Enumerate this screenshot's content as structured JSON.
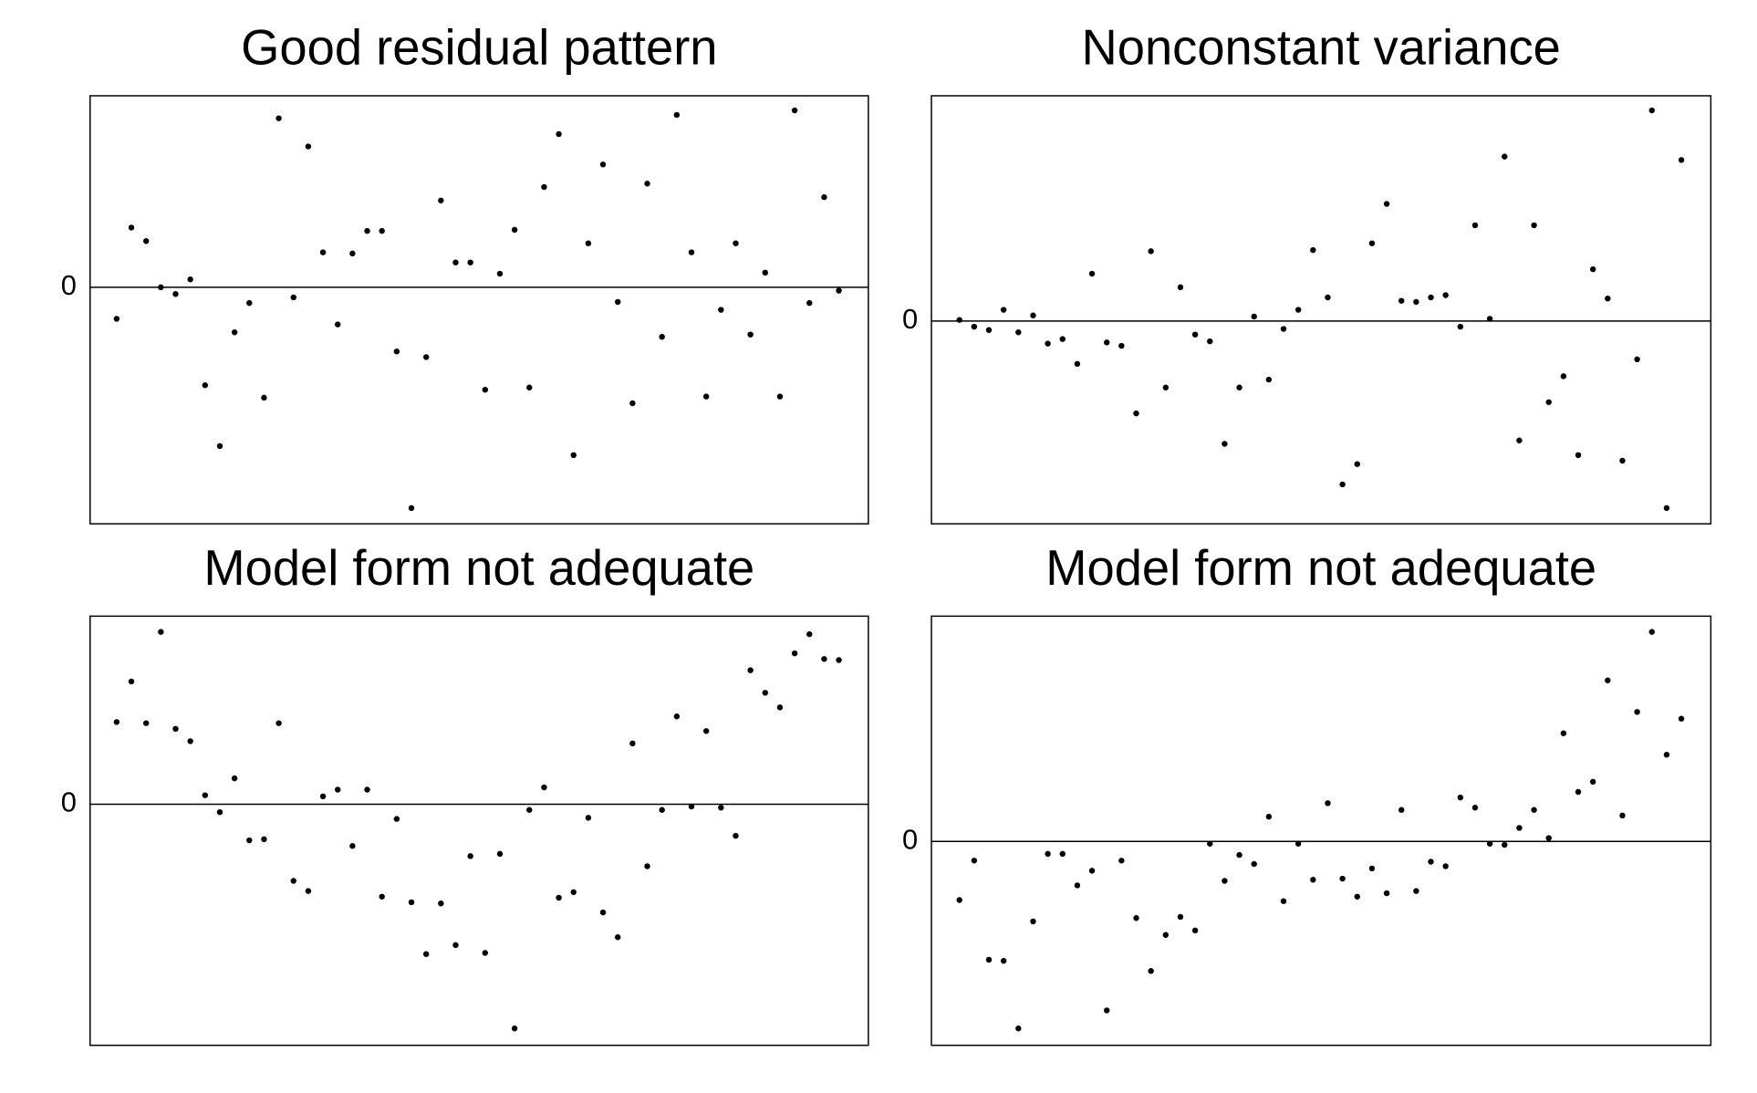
{
  "chart_data": [
    {
      "type": "scatter",
      "title": "Good residual pattern",
      "x": [
        1,
        2,
        3,
        4,
        5,
        6,
        7,
        8,
        9,
        10,
        11,
        12,
        13,
        14,
        15,
        16,
        17,
        18,
        19,
        20,
        21,
        22,
        23,
        24,
        25,
        26,
        27,
        28,
        29,
        30,
        31,
        32,
        33,
        34,
        35,
        36,
        37,
        38,
        39,
        40,
        41,
        42,
        43,
        44,
        45,
        46,
        47,
        48,
        49,
        50
      ],
      "values": [
        -2.8,
        5.3,
        4.1,
        0,
        -0.6,
        0.7,
        -8.7,
        -14.1,
        -4,
        -1.4,
        -9.8,
        15,
        -0.9,
        12.5,
        3.1,
        -3.3,
        3,
        5,
        5,
        -5.7,
        -19.6,
        -6.2,
        7.7,
        2.2,
        2.2,
        -9.1,
        1.2,
        5.1,
        -8.9,
        8.9,
        13.6,
        -14.9,
        3.9,
        10.9,
        -1.3,
        -10.3,
        9.2,
        -4.4,
        15.3,
        3.1,
        -9.7,
        -2,
        3.9,
        -4.2,
        1.3,
        -9.7,
        15.7,
        -1.4,
        8,
        -0.3
      ],
      "xlim": [
        -0.8,
        52
      ],
      "ylim": [
        -21,
        17
      ],
      "yticks": [
        0
      ],
      "grid": true,
      "color": "#000000"
    },
    {
      "type": "scatter",
      "title": "Nonconstant variance",
      "x": [
        1,
        2,
        3,
        4,
        5,
        6,
        7,
        8,
        9,
        10,
        11,
        12,
        13,
        14,
        15,
        16,
        17,
        18,
        19,
        20,
        21,
        22,
        23,
        24,
        25,
        26,
        27,
        28,
        29,
        30,
        31,
        32,
        33,
        34,
        35,
        36,
        37,
        38,
        39,
        40,
        41,
        42,
        43,
        44,
        45,
        46,
        47,
        48,
        49,
        50
      ],
      "values": [
        0.1,
        -0.5,
        -0.8,
        1,
        -1,
        0.5,
        -2,
        -1.6,
        -3.8,
        4.2,
        -1.9,
        -2.2,
        -8.2,
        6.2,
        -5.9,
        3,
        -1.2,
        -1.8,
        -10.9,
        -5.9,
        0.4,
        -5.2,
        -0.7,
        1,
        6.3,
        2.1,
        -14.5,
        -12.7,
        6.9,
        10.4,
        1.8,
        1.7,
        2.1,
        2.3,
        -0.5,
        8.5,
        0.2,
        14.6,
        -10.6,
        8.5,
        -7.2,
        -4.9,
        -11.9,
        4.6,
        2,
        -12.4,
        -3.4,
        18.7,
        -16.6,
        14.3
      ],
      "xlim": [
        -0.9,
        52
      ],
      "ylim": [
        -18,
        20
      ],
      "yticks": [
        0
      ],
      "grid": true,
      "color": "#000000"
    },
    {
      "type": "scatter",
      "title": "Model form not adequate",
      "x": [
        1,
        2,
        3,
        4,
        5,
        6,
        7,
        8,
        9,
        10,
        11,
        12,
        13,
        14,
        15,
        16,
        17,
        18,
        19,
        20,
        21,
        22,
        23,
        24,
        25,
        26,
        27,
        28,
        29,
        30,
        31,
        32,
        33,
        34,
        35,
        36,
        37,
        38,
        39,
        40,
        41,
        42,
        43,
        44,
        45,
        46,
        47,
        48,
        49,
        50
      ],
      "values": [
        7.3,
        10.9,
        7.2,
        15.3,
        6.7,
        5.6,
        0.8,
        -0.7,
        2.3,
        -3.2,
        -3.1,
        7.2,
        -6.8,
        -7.7,
        0.7,
        1.3,
        -3.7,
        1.3,
        -8.2,
        -1.3,
        -8.7,
        -13.3,
        -8.8,
        -12.5,
        -4.6,
        -13.2,
        -4.4,
        -19.9,
        -0.5,
        1.5,
        -8.3,
        -7.8,
        -1.2,
        -9.6,
        -11.8,
        5.4,
        -5.5,
        -0.5,
        7.8,
        -0.2,
        6.5,
        -0.3,
        -2.8,
        11.9,
        9.9,
        8.6,
        13.4,
        15.1,
        12.9,
        12.8
      ],
      "xlim": [
        -0.8,
        52
      ],
      "ylim": [
        -21.4,
        16.7
      ],
      "yticks": [
        0
      ],
      "grid": true,
      "color": "#000000"
    },
    {
      "type": "scatter",
      "title": "Model form not adequate",
      "x": [
        1,
        2,
        3,
        4,
        5,
        6,
        7,
        8,
        9,
        10,
        11,
        12,
        13,
        14,
        15,
        16,
        17,
        18,
        19,
        20,
        21,
        22,
        23,
        24,
        25,
        26,
        27,
        28,
        29,
        30,
        31,
        32,
        33,
        34,
        35,
        36,
        37,
        38,
        39,
        40,
        41,
        42,
        43,
        44,
        45,
        46,
        47,
        48,
        49,
        50
      ],
      "values": [
        -5.2,
        -1.7,
        -10.5,
        -10.6,
        -16.6,
        -7.1,
        -1.1,
        -1.1,
        -3.9,
        -2.6,
        -15,
        -1.7,
        -6.8,
        -11.5,
        -8.3,
        -6.7,
        -7.9,
        -0.2,
        -3.5,
        -1.2,
        -2,
        2.2,
        -5.3,
        -0.2,
        -3.4,
        3.4,
        -3.3,
        -4.9,
        -2.4,
        -4.6,
        2.8,
        -4.4,
        -1.8,
        -2.2,
        3.9,
        3,
        -0.2,
        -0.3,
        1.2,
        2.8,
        0.3,
        9.6,
        4.4,
        5.3,
        14.3,
        2.3,
        11.5,
        18.6,
        7.7,
        10.9
      ],
      "xlim": [
        -0.9,
        52
      ],
      "ylim": [
        -18.1,
        20
      ],
      "yticks": [
        0
      ],
      "grid": true,
      "color": "#000000"
    }
  ]
}
